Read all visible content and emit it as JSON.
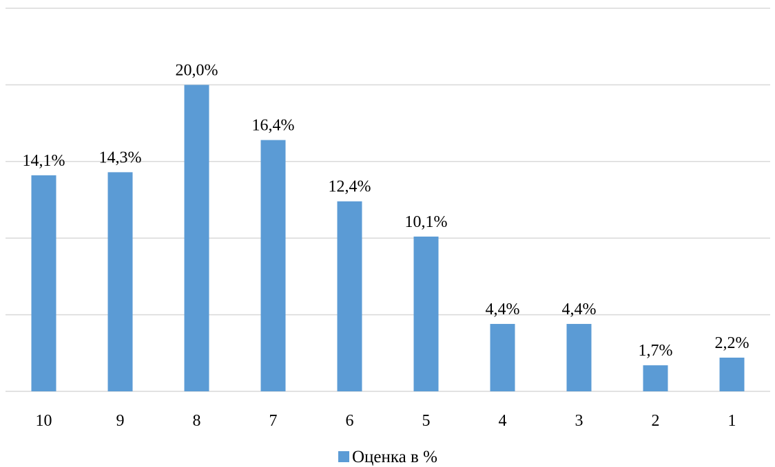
{
  "chart_data": {
    "type": "bar",
    "categories": [
      "10",
      "9",
      "8",
      "7",
      "6",
      "5",
      "4",
      "3",
      "2",
      "1"
    ],
    "series": [
      {
        "name": "Оценка в %",
        "values": [
          14.1,
          14.3,
          20.0,
          16.4,
          12.4,
          10.1,
          4.4,
          4.4,
          1.7,
          2.2
        ],
        "labels": [
          "14,1%",
          "14,3%",
          "20,0%",
          "16,4%",
          "12,4%",
          "10,1%",
          "4,4%",
          "4,4%",
          "1,7%",
          "2,2%"
        ],
        "color": "#5b9bd5"
      }
    ],
    "ylim": [
      0,
      25
    ],
    "y_gridlines": [
      0,
      5,
      10,
      15,
      20,
      25
    ],
    "y_tick_labels_visible": false,
    "grid": true,
    "legend_position": "bottom"
  }
}
